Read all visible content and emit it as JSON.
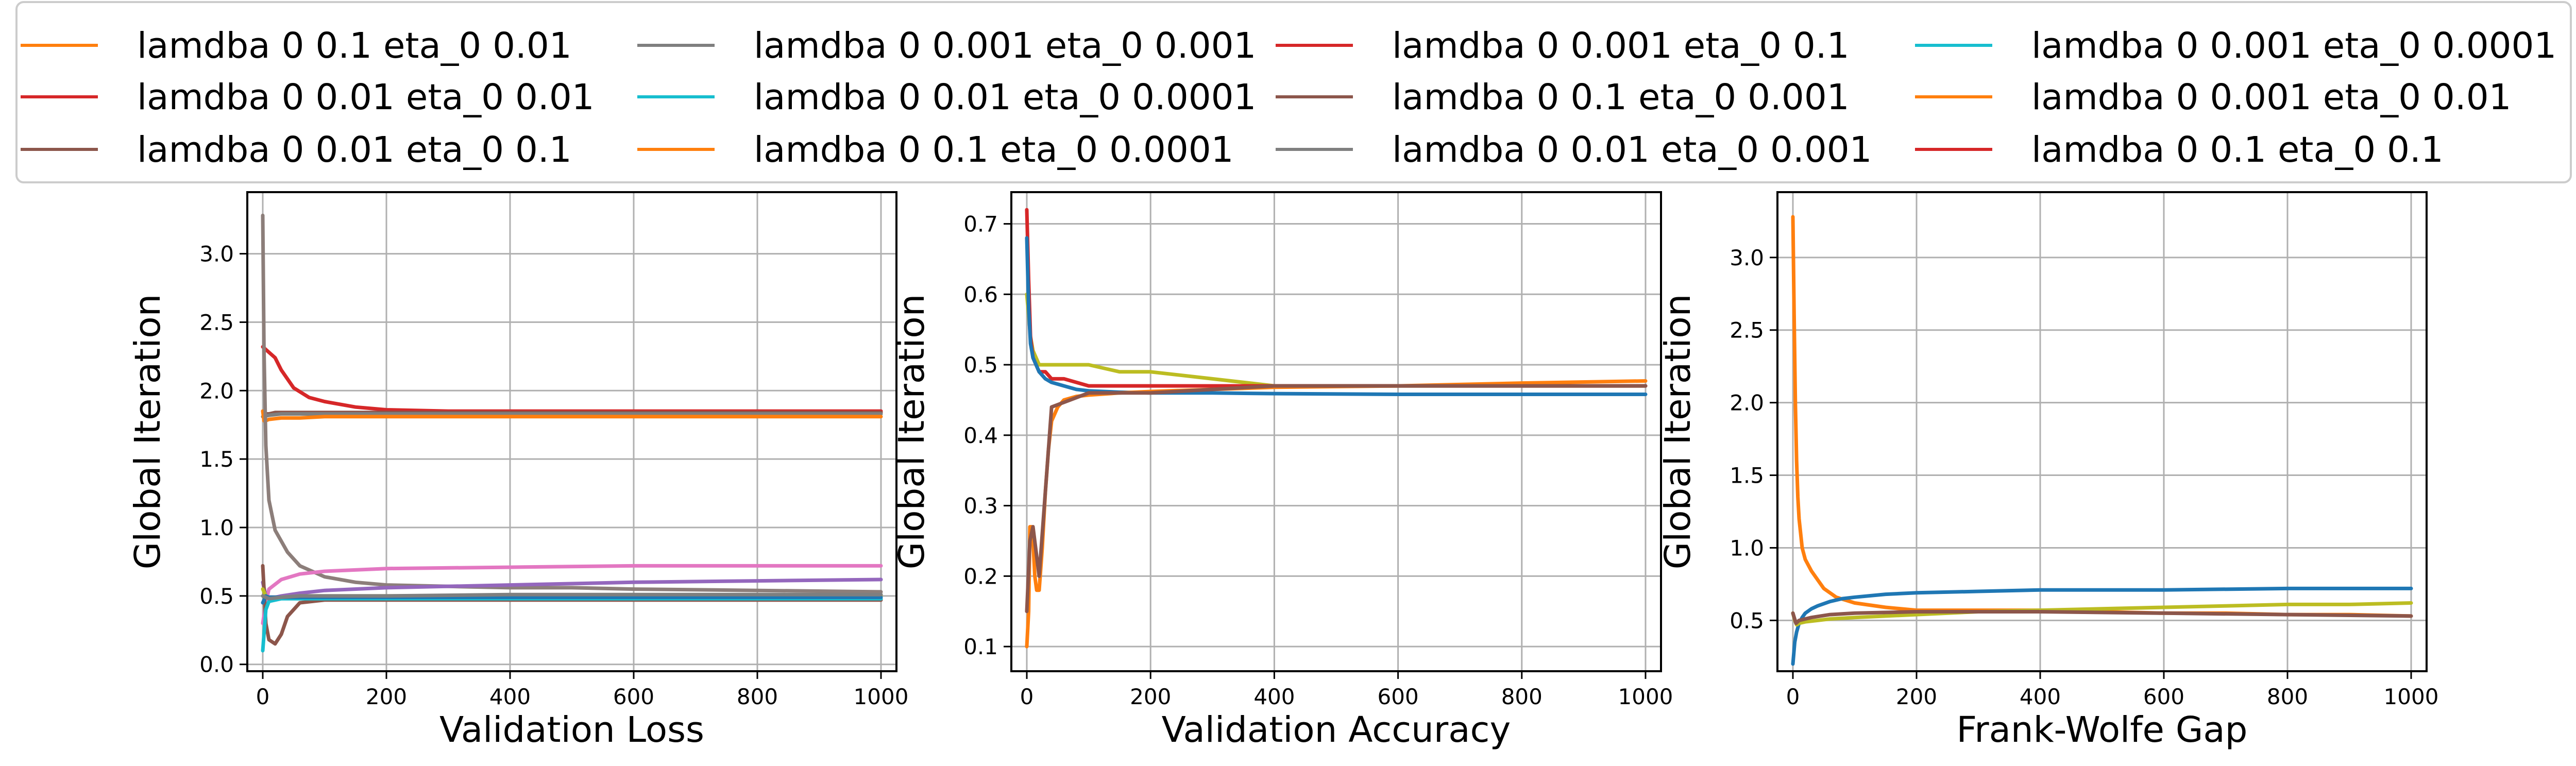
{
  "legend": {
    "location": "top, spanning full width, 4 columns",
    "entries": [
      {
        "label": "lamdba 0 0.1 eta_0 0.01",
        "color": "#ff7f0e"
      },
      {
        "label": "lamdba 0 0.01 eta_0 0.01",
        "color": "#d62728"
      },
      {
        "label": "lamdba 0 0.01 eta_0 0.1",
        "color": "#8c564b"
      },
      {
        "label": "lamdba 0 0.001 eta_0 0.001",
        "color": "#7f7f7f"
      },
      {
        "label": "lamdba 0 0.01 eta_0 0.0001",
        "color": "#17becf"
      },
      {
        "label": "lamdba 0 0.1 eta_0 0.0001",
        "color": "#ff7f0e"
      },
      {
        "label": "lamdba 0 0.001 eta_0 0.1",
        "color": "#d62728"
      },
      {
        "label": "lamdba 0 0.1 eta_0 0.001",
        "color": "#8c564b"
      },
      {
        "label": "lamdba 0 0.01 eta_0 0.001",
        "color": "#7f7f7f"
      },
      {
        "label": "lamdba 0 0.001 eta_0 0.0001",
        "color": "#17becf"
      },
      {
        "label": "lamdba 0 0.001 eta_0 0.01",
        "color": "#ff7f0e"
      },
      {
        "label": "lamdba 0 0.1 eta_0 0.1",
        "color": "#d62728"
      }
    ]
  },
  "chart_data": [
    {
      "type": "line",
      "xlabel": "Validation Loss",
      "ylabel": "Global Iteration",
      "xlim": [
        -25,
        1025
      ],
      "ylim": [
        -0.05,
        3.45
      ],
      "xticks": [
        0,
        200,
        400,
        600,
        800,
        1000
      ],
      "yticks": [
        0.0,
        0.5,
        1.0,
        1.5,
        2.0,
        2.5,
        3.0
      ],
      "ytick_labels": [
        "0.0",
        "0.5",
        "1.0",
        "1.5",
        "2.0",
        "2.5",
        "3.0"
      ],
      "grid": true,
      "series": [
        {
          "color": "#d62728",
          "x": [
            0,
            10,
            20,
            30,
            50,
            75,
            100,
            150,
            200,
            300,
            500,
            700,
            1000
          ],
          "y": [
            2.32,
            2.28,
            2.24,
            2.15,
            2.02,
            1.95,
            1.92,
            1.88,
            1.86,
            1.85,
            1.85,
            1.85,
            1.85
          ]
        },
        {
          "color": "#8c564b",
          "x": [
            0,
            5,
            10,
            20,
            30,
            50,
            80,
            100,
            150,
            200,
            300,
            500,
            700,
            1000
          ],
          "y": [
            1.85,
            1.83,
            1.83,
            1.84,
            1.84,
            1.84,
            1.84,
            1.84,
            1.84,
            1.84,
            1.84,
            1.84,
            1.84,
            1.84
          ]
        },
        {
          "color": "#7f7f7f",
          "x": [
            0,
            10,
            30,
            60,
            100,
            200,
            400,
            700,
            1000
          ],
          "y": [
            1.81,
            1.82,
            1.83,
            1.83,
            1.83,
            1.83,
            1.83,
            1.83,
            1.83
          ]
        },
        {
          "color": "#ff7f0e",
          "x": [
            0,
            2,
            5,
            10,
            30,
            60,
            100,
            200,
            400,
            700,
            1000
          ],
          "y": [
            1.85,
            1.78,
            1.78,
            1.79,
            1.8,
            1.8,
            1.81,
            1.81,
            1.81,
            1.81,
            1.81
          ]
        },
        {
          "color": "#8c7e7a",
          "x": [
            0,
            2,
            5,
            10,
            20,
            40,
            60,
            100,
            150,
            200,
            300,
            400,
            500,
            600,
            800,
            1000
          ],
          "y": [
            3.28,
            2.3,
            1.6,
            1.2,
            0.98,
            0.82,
            0.72,
            0.64,
            0.6,
            0.58,
            0.57,
            0.56,
            0.56,
            0.55,
            0.54,
            0.53
          ]
        },
        {
          "color": "#e377c2",
          "x": [
            0,
            5,
            10,
            30,
            60,
            100,
            200,
            400,
            600,
            800,
            1000
          ],
          "y": [
            0.3,
            0.45,
            0.55,
            0.62,
            0.66,
            0.68,
            0.7,
            0.71,
            0.72,
            0.72,
            0.72
          ]
        },
        {
          "color": "#9467bd",
          "x": [
            0,
            5,
            10,
            30,
            60,
            100,
            200,
            400,
            600,
            800,
            1000
          ],
          "y": [
            0.6,
            0.5,
            0.48,
            0.5,
            0.52,
            0.54,
            0.56,
            0.58,
            0.6,
            0.61,
            0.62
          ]
        },
        {
          "color": "#8c564b",
          "x": [
            0,
            5,
            10,
            20,
            30,
            40,
            60,
            100,
            200,
            400,
            700,
            1000
          ],
          "y": [
            0.72,
            0.3,
            0.18,
            0.15,
            0.22,
            0.35,
            0.45,
            0.47,
            0.47,
            0.47,
            0.47,
            0.47
          ]
        },
        {
          "color": "#bcbd22",
          "x": [
            0,
            5,
            10,
            30,
            60,
            100,
            200,
            400,
            700,
            1000
          ],
          "y": [
            0.55,
            0.5,
            0.48,
            0.49,
            0.5,
            0.5,
            0.5,
            0.5,
            0.5,
            0.5
          ]
        },
        {
          "color": "#17becf",
          "x": [
            0,
            5,
            10,
            30,
            60,
            100,
            200,
            400,
            700,
            1000
          ],
          "y": [
            0.1,
            0.4,
            0.46,
            0.48,
            0.48,
            0.48,
            0.48,
            0.48,
            0.48,
            0.48
          ]
        },
        {
          "color": "#1f77b4",
          "x": [
            0,
            5,
            10,
            30,
            60,
            100,
            200,
            400,
            700,
            1000
          ],
          "y": [
            0.45,
            0.5,
            0.49,
            0.49,
            0.49,
            0.49,
            0.49,
            0.49,
            0.49,
            0.49
          ]
        },
        {
          "color": "#7f7f7f",
          "x": [
            0,
            10,
            30,
            60,
            100,
            200,
            400,
            700,
            1000
          ],
          "y": [
            0.5,
            0.48,
            0.49,
            0.5,
            0.5,
            0.5,
            0.51,
            0.51,
            0.51
          ]
        }
      ]
    },
    {
      "type": "line",
      "xlabel": "Validation Accuracy",
      "ylabel": "Global Iteration",
      "xlim": [
        -25,
        1025
      ],
      "ylim": [
        0.065,
        0.745
      ],
      "xticks": [
        0,
        200,
        400,
        600,
        800,
        1000
      ],
      "yticks": [
        0.1,
        0.2,
        0.3,
        0.4,
        0.5,
        0.6,
        0.7
      ],
      "ytick_labels": [
        "0.1",
        "0.2",
        "0.3",
        "0.4",
        "0.5",
        "0.6",
        "0.7"
      ],
      "grid": true,
      "series": [
        {
          "color": "#bcbd22",
          "x": [
            0,
            3,
            6,
            10,
            15,
            20,
            30,
            50,
            80,
            100,
            150,
            200,
            300,
            400,
            500,
            600,
            700,
            800,
            1000
          ],
          "y": [
            0.6,
            0.57,
            0.54,
            0.52,
            0.51,
            0.5,
            0.5,
            0.5,
            0.5,
            0.5,
            0.49,
            0.49,
            0.48,
            0.47,
            0.47,
            0.47,
            0.47,
            0.47,
            0.47
          ]
        },
        {
          "color": "#d62728",
          "x": [
            0,
            3,
            6,
            10,
            15,
            20,
            30,
            40,
            60,
            100,
            200,
            400,
            700,
            1000
          ],
          "y": [
            0.72,
            0.62,
            0.54,
            0.51,
            0.5,
            0.49,
            0.49,
            0.48,
            0.48,
            0.47,
            0.47,
            0.47,
            0.47,
            0.47
          ]
        },
        {
          "color": "#1f77b4",
          "x": [
            0,
            3,
            6,
            10,
            15,
            20,
            30,
            40,
            60,
            80,
            100,
            150,
            200,
            300,
            400,
            600,
            800,
            1000
          ],
          "y": [
            0.68,
            0.58,
            0.53,
            0.51,
            0.5,
            0.49,
            0.48,
            0.475,
            0.47,
            0.465,
            0.463,
            0.461,
            0.46,
            0.46,
            0.459,
            0.458,
            0.458,
            0.458
          ]
        },
        {
          "color": "#ff7f0e",
          "x": [
            0,
            3,
            5,
            8,
            10,
            13,
            16,
            20,
            25,
            30,
            35,
            40,
            50,
            60,
            80,
            100,
            150,
            200,
            300,
            400,
            600,
            800,
            1000
          ],
          "y": [
            0.1,
            0.15,
            0.27,
            0.27,
            0.25,
            0.2,
            0.18,
            0.18,
            0.24,
            0.32,
            0.38,
            0.42,
            0.44,
            0.45,
            0.455,
            0.457,
            0.46,
            0.462,
            0.465,
            0.468,
            0.47,
            0.474,
            0.477
          ]
        },
        {
          "color": "#8c564b",
          "x": [
            0,
            5,
            10,
            20,
            40,
            100,
            200,
            400,
            700,
            1000
          ],
          "y": [
            0.15,
            0.25,
            0.27,
            0.2,
            0.44,
            0.46,
            0.46,
            0.47,
            0.47,
            0.47
          ]
        }
      ]
    },
    {
      "type": "line",
      "xlabel": "Frank-Wolfe Gap",
      "ylabel": "Global Iteration",
      "xlim": [
        -25,
        1025
      ],
      "ylim": [
        0.15,
        3.45
      ],
      "xticks": [
        0,
        200,
        400,
        600,
        800,
        1000
      ],
      "yticks": [
        0.5,
        1.0,
        1.5,
        2.0,
        2.5,
        3.0
      ],
      "ytick_labels": [
        "0.5",
        "1.0",
        "1.5",
        "2.0",
        "2.5",
        "3.0"
      ],
      "grid": true,
      "series": [
        {
          "color": "#ff7f0e",
          "x": [
            0,
            2,
            4,
            6,
            8,
            10,
            15,
            20,
            30,
            40,
            50,
            70,
            100,
            150,
            200,
            300,
            400,
            500,
            600,
            700,
            800,
            900,
            1000
          ],
          "y": [
            3.28,
            2.6,
            2.0,
            1.6,
            1.35,
            1.2,
            1.0,
            0.92,
            0.84,
            0.78,
            0.72,
            0.66,
            0.62,
            0.59,
            0.57,
            0.57,
            0.57,
            0.56,
            0.55,
            0.55,
            0.54,
            0.54,
            0.53
          ]
        },
        {
          "color": "#1f77b4",
          "x": [
            0,
            3,
            6,
            10,
            15,
            20,
            30,
            40,
            60,
            80,
            100,
            150,
            200,
            300,
            400,
            600,
            800,
            1000
          ],
          "y": [
            0.2,
            0.35,
            0.42,
            0.48,
            0.52,
            0.55,
            0.58,
            0.6,
            0.63,
            0.65,
            0.66,
            0.68,
            0.69,
            0.7,
            0.71,
            0.71,
            0.72,
            0.72
          ]
        },
        {
          "color": "#bcbd22",
          "x": [
            0,
            3,
            6,
            10,
            20,
            40,
            60,
            100,
            150,
            200,
            300,
            400,
            500,
            600,
            700,
            800,
            900,
            1000
          ],
          "y": [
            0.55,
            0.5,
            0.47,
            0.48,
            0.49,
            0.5,
            0.51,
            0.52,
            0.53,
            0.54,
            0.56,
            0.57,
            0.58,
            0.59,
            0.6,
            0.61,
            0.61,
            0.62
          ]
        },
        {
          "color": "#8c564b",
          "x": [
            0,
            5,
            10,
            30,
            60,
            100,
            200,
            400,
            600,
            800,
            1000
          ],
          "y": [
            0.55,
            0.48,
            0.5,
            0.52,
            0.54,
            0.55,
            0.56,
            0.56,
            0.55,
            0.54,
            0.53
          ]
        }
      ]
    }
  ]
}
